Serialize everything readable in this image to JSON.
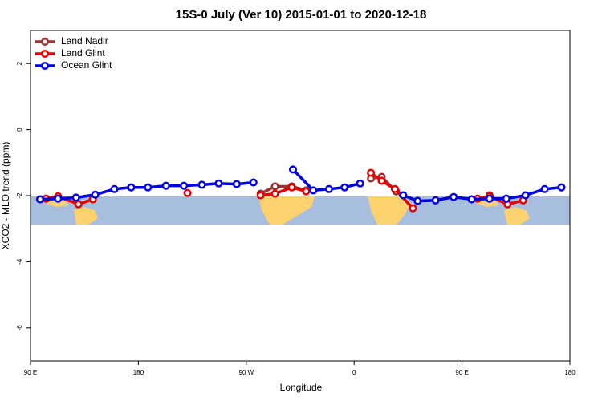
{
  "chart_data": {
    "type": "line",
    "title": "15S-0 July (Ver 10)   2015-01-01 to 2020-12-18",
    "x_label": "Longitude",
    "y_label": "XCO2 - MLO trend (ppm)",
    "xlim": [
      90,
      540
    ],
    "ylim": [
      -7,
      3
    ],
    "xticks": [
      {
        "value": 90,
        "label": "90 E"
      },
      180,
      {
        "value": 270,
        "label": "90 W"
      },
      {
        "value": 360,
        "label": "0"
      },
      {
        "value": 450,
        "label": "90 E"
      },
      {
        "value": 540,
        "label": "180"
      }
    ],
    "yticks": [
      2,
      0,
      -2,
      -4,
      -6
    ],
    "legend": "top-left",
    "series": [
      {
        "name": "Land Nadir",
        "color": "#993333",
        "x": [
          282,
          294,
          308,
          320,
          null,
          374,
          383,
          395,
          null,
          473
        ],
        "values": [
          -1.94,
          -1.72,
          -1.72,
          -1.84,
          null,
          -1.48,
          -1.43,
          -1.87,
          null,
          -1.99
        ]
      },
      {
        "name": "Land Glint",
        "color": "#e60000",
        "x": [
          103,
          113,
          130,
          142,
          null,
          221,
          null,
          282,
          294,
          308,
          320,
          null,
          374,
          383,
          394,
          409,
          null,
          463,
          473,
          488,
          501
        ],
        "values": [
          -2.09,
          -2.02,
          -2.26,
          -2.11,
          null,
          -1.92,
          null,
          -1.99,
          -1.94,
          -1.75,
          -1.87,
          null,
          -1.31,
          -1.55,
          -1.8,
          -2.38,
          null,
          -2.09,
          -2.02,
          -2.26,
          -2.14
        ]
      },
      {
        "name": "Ocean Glint",
        "color": "#0000e6",
        "x": [
          98,
          113,
          128,
          144,
          160,
          174,
          188,
          203,
          218,
          233,
          247,
          262,
          276,
          null,
          309,
          326,
          339,
          352,
          365,
          null,
          401,
          413,
          428,
          443,
          458,
          473,
          487,
          503,
          519,
          533
        ],
        "values": [
          -2.11,
          -2.09,
          -2.06,
          -1.97,
          -1.8,
          -1.75,
          -1.75,
          -1.7,
          -1.7,
          -1.67,
          -1.63,
          -1.65,
          -1.6,
          null,
          -1.21,
          -1.84,
          -1.8,
          -1.75,
          -1.63,
          null,
          -1.99,
          -2.16,
          -2.14,
          -2.04,
          -2.11,
          -2.09,
          -2.09,
          -1.99,
          -1.8,
          -1.75
        ]
      }
    ]
  }
}
